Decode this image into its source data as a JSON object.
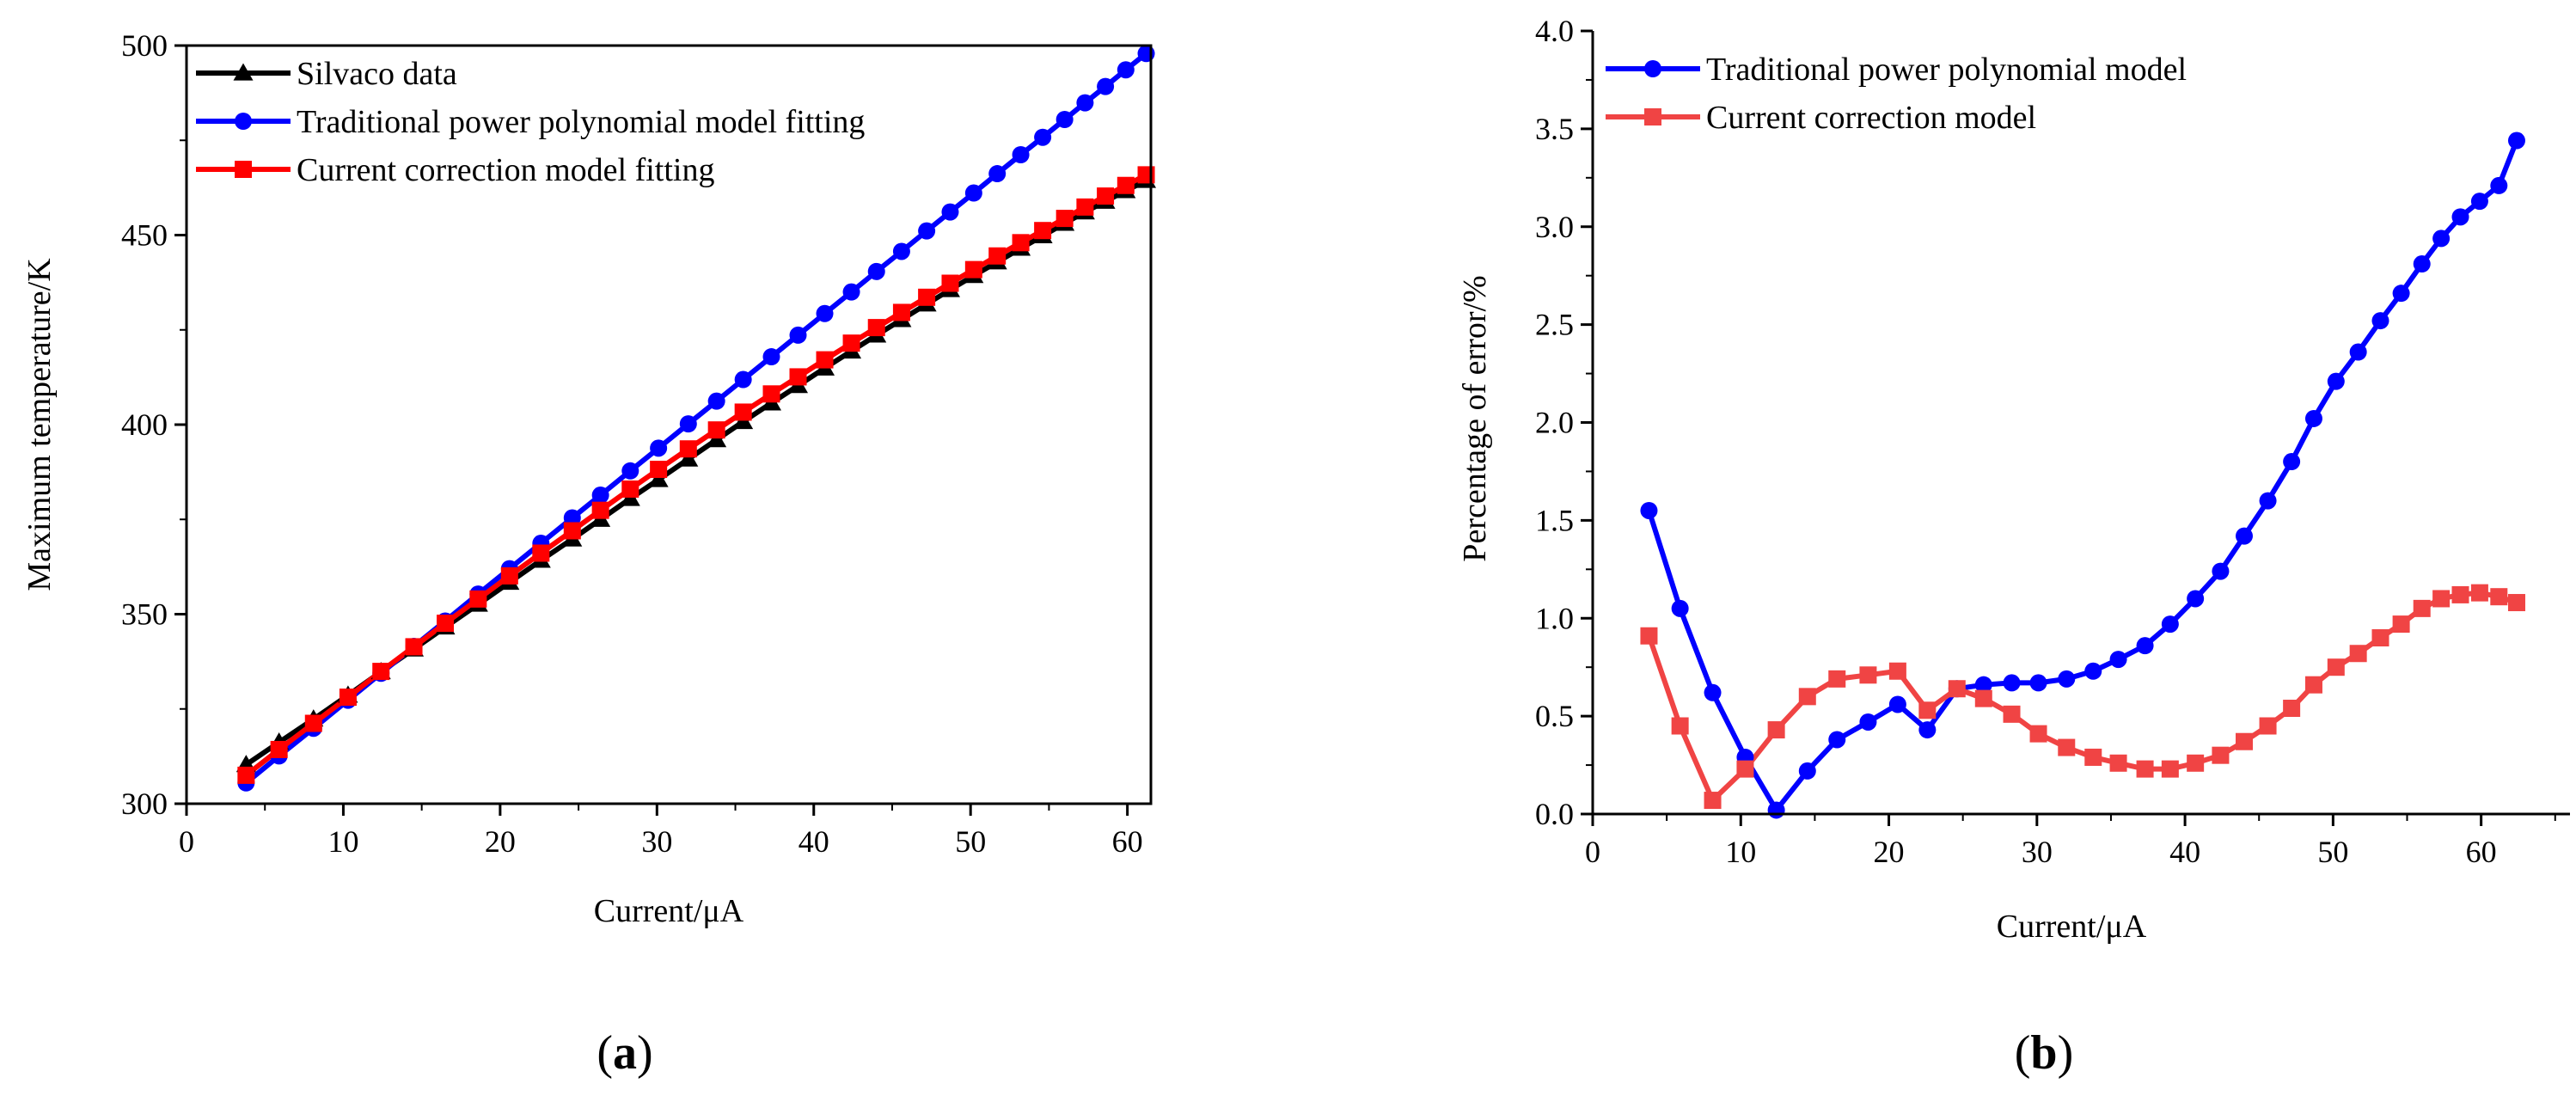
{
  "colors": {
    "black": "#000000",
    "blue": "#0000ff",
    "red_a": "#ff0000",
    "red_b": "#f04444"
  },
  "panels": [
    {
      "label_open": "(",
      "label_letter": "a",
      "label_close": ")"
    },
    {
      "label_open": "(",
      "label_letter": "b",
      "label_close": ")"
    }
  ],
  "chart_data": [
    {
      "type": "line",
      "panel": "a",
      "xlabel": "Current/μA",
      "ylabel": "Maximum temperature/K",
      "xlim": [
        0,
        61.5
      ],
      "ylim": [
        300,
        500
      ],
      "xticks": [
        0,
        10,
        20,
        30,
        40,
        50,
        60
      ],
      "yticks": [
        300,
        350,
        400,
        450,
        500
      ],
      "legend_position": "top-left",
      "x": [
        3.8,
        5.9,
        8.1,
        10.3,
        12.4,
        14.5,
        16.5,
        18.6,
        20.6,
        22.6,
        24.6,
        26.4,
        28.3,
        30.1,
        32.0,
        33.8,
        35.5,
        37.3,
        39.0,
        40.7,
        42.4,
        44.0,
        45.6,
        47.2,
        48.7,
        50.2,
        51.7,
        53.2,
        54.6,
        56.0,
        57.3,
        58.6,
        59.9,
        61.2
      ],
      "series": [
        {
          "name": "Silvaco data",
          "marker": "triangle",
          "color": "#000000",
          "values": [
            310.3,
            316.2,
            322.3,
            328.6,
            334.8,
            340.8,
            346.6,
            352.6,
            358.4,
            364.2,
            369.8,
            375.0,
            380.5,
            385.5,
            390.9,
            396.0,
            400.8,
            405.7,
            410.3,
            414.9,
            419.4,
            423.6,
            427.7,
            431.8,
            435.6,
            439.3,
            442.9,
            446.5,
            449.8,
            453.1,
            456.1,
            458.9,
            461.7,
            464.4
          ]
        },
        {
          "name": "Traditional power polynomial model fitting",
          "marker": "circle",
          "color": "#0000ff",
          "values": [
            305.5,
            312.6,
            319.9,
            327.3,
            334.4,
            341.5,
            348.2,
            355.3,
            362.0,
            368.7,
            375.4,
            381.4,
            387.8,
            393.8,
            400.2,
            406.2,
            411.9,
            417.9,
            423.6,
            429.3,
            435.0,
            440.4,
            445.7,
            451.1,
            456.1,
            461.1,
            466.2,
            471.2,
            475.8,
            480.5,
            484.9,
            489.2,
            493.6,
            497.9
          ]
        },
        {
          "name": "Current correction model fitting",
          "marker": "square",
          "color": "#ff0000",
          "values": [
            307.5,
            314.3,
            321.2,
            328.1,
            334.9,
            341.4,
            347.6,
            354.0,
            360.1,
            366.1,
            372.0,
            377.4,
            383.0,
            388.2,
            393.6,
            398.6,
            403.3,
            408.1,
            412.6,
            417.1,
            421.5,
            425.6,
            429.6,
            433.6,
            437.3,
            440.9,
            444.5,
            448.0,
            451.2,
            454.4,
            457.4,
            460.3,
            463.1,
            465.9
          ]
        }
      ]
    },
    {
      "type": "line",
      "panel": "b",
      "xlabel": "Current/μA",
      "ylabel": "Percentage of error/%",
      "xlim": [
        0,
        66
      ],
      "ylim": [
        0,
        4.0
      ],
      "xticks": [
        0,
        10,
        20,
        30,
        40,
        50,
        60
      ],
      "yticks": [
        "0.0",
        "0.5",
        "1.0",
        "1.5",
        "2.0",
        "2.5",
        "3.0",
        "3.5",
        "4.0"
      ],
      "legend_position": "top-left",
      "x": [
        3.8,
        5.9,
        8.1,
        10.3,
        12.4,
        14.5,
        16.5,
        18.6,
        20.6,
        22.6,
        24.6,
        26.4,
        28.3,
        30.1,
        32.0,
        33.8,
        35.5,
        37.3,
        39.0,
        40.7,
        42.4,
        44.0,
        45.6,
        47.2,
        48.7,
        50.2,
        51.7,
        53.2,
        54.6,
        56.0,
        57.3,
        58.6,
        59.9,
        61.2,
        62.4
      ],
      "series": [
        {
          "name": "Traditional power polynomial model",
          "marker": "circle",
          "color": "#0000ff",
          "values": [
            1.55,
            1.05,
            0.62,
            0.29,
            0.02,
            0.22,
            0.38,
            0.47,
            0.56,
            0.43,
            0.64,
            0.66,
            0.67,
            0.67,
            0.69,
            0.73,
            0.79,
            0.86,
            0.97,
            1.1,
            1.24,
            1.42,
            1.6,
            1.8,
            2.02,
            2.21,
            2.36,
            2.52,
            2.66,
            2.81,
            2.94,
            3.05,
            3.13,
            3.21,
            3.44
          ]
        },
        {
          "name": "Current correction model",
          "marker": "square",
          "color": "#f04444",
          "values": [
            0.91,
            0.45,
            0.07,
            0.23,
            0.43,
            0.6,
            0.69,
            0.71,
            0.73,
            0.53,
            0.64,
            0.59,
            0.51,
            0.41,
            0.34,
            0.29,
            0.26,
            0.23,
            0.23,
            0.26,
            0.3,
            0.37,
            0.45,
            0.54,
            0.66,
            0.75,
            0.82,
            0.9,
            0.97,
            1.05,
            1.1,
            1.12,
            1.13,
            1.11,
            1.08
          ]
        }
      ]
    }
  ]
}
